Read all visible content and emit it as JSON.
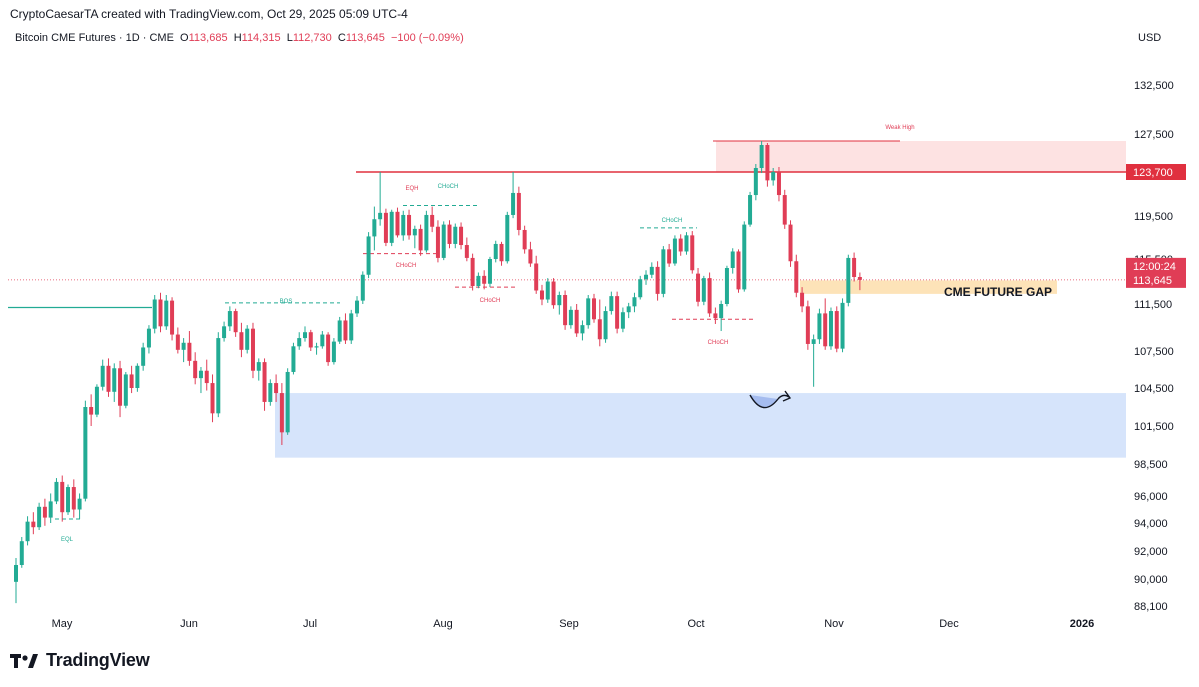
{
  "header": {
    "attribution": "CryptoCaesarTA created with TradingView.com, Oct 29, 2025 05:09 UTC-4"
  },
  "legend": {
    "symbol": "Bitcoin CME Futures · 1D · CME",
    "o_label": "O",
    "o_value": "113,685",
    "h_label": "H",
    "h_value": "114,315",
    "l_label": "L",
    "l_value": "112,730",
    "c_label": "C",
    "c_value": "113,645",
    "change": "−100 (−0.09%)"
  },
  "currency": "USD",
  "brand": {
    "name": "TradingView"
  },
  "colors": {
    "up": "#22ab94",
    "down": "#e03d56",
    "supply_zone": "#fde2e2",
    "demand_zone": "#d6e4fb",
    "gap_zone": "#fde3b8",
    "resistance": "#e0303f"
  },
  "chart_data": {
    "type": "candlestick",
    "y_axis": {
      "ticks": [
        "132,500",
        "127,500",
        "123,700",
        "119,500",
        "115,500",
        "113,645",
        "111,500",
        "107,500",
        "104,500",
        "101,500",
        "98,500",
        "96,000",
        "94,000",
        "92,000",
        "90,000",
        "88,100"
      ],
      "tick_values": [
        132500,
        127500,
        119500,
        115500,
        111500,
        107500,
        104500,
        101500,
        98500,
        96000,
        94000,
        92000,
        90000,
        88100
      ]
    },
    "x_axis": {
      "ticks": [
        "May",
        "Jun",
        "Jul",
        "Aug",
        "Sep",
        "Oct",
        "Nov",
        "Dec",
        "2026"
      ]
    },
    "last_price": {
      "value": 113645,
      "label": "113,645",
      "countdown": "12:00:24"
    },
    "resistance": {
      "value": 123700,
      "label": "123,700"
    },
    "zones": [
      {
        "name": "supply",
        "from": 123700,
        "to": 126800,
        "start": "Oct",
        "label": "Weak High"
      },
      {
        "name": "cme_gap",
        "from": 112400,
        "to": 113600,
        "start": "Oct 24",
        "label": "CME FUTURE GAP"
      },
      {
        "name": "demand",
        "from": 99000,
        "to": 104100,
        "start": "Jun 20"
      }
    ],
    "annotations": [
      "EQL",
      "BOS",
      "EQH",
      "CHoCH",
      "CHoCH",
      "CHoCH",
      "CHoCH",
      "CHoCH"
    ],
    "ohlc_approx": [
      [
        89800,
        91500,
        88300,
        91000
      ],
      [
        91000,
        93000,
        90800,
        92700
      ],
      [
        92700,
        94500,
        92400,
        94100
      ],
      [
        94100,
        94800,
        93200,
        93700
      ],
      [
        93700,
        95500,
        93500,
        95200
      ],
      [
        95200,
        95800,
        93800,
        94400
      ],
      [
        94400,
        96200,
        94000,
        95600
      ],
      [
        95600,
        97400,
        95400,
        97100
      ],
      [
        97100,
        97600,
        94100,
        94800
      ],
      [
        94800,
        96900,
        94600,
        96700
      ],
      [
        96700,
        97300,
        94400,
        95000
      ],
      [
        95000,
        96200,
        94300,
        95800
      ],
      [
        95800,
        103500,
        95600,
        103000
      ],
      [
        103000,
        104000,
        101500,
        102400
      ],
      [
        102400,
        104800,
        102200,
        104600
      ],
      [
        104600,
        106800,
        104300,
        106300
      ],
      [
        106300,
        106900,
        103800,
        104200
      ],
      [
        104200,
        106500,
        103400,
        106100
      ],
      [
        106100,
        106700,
        102200,
        103100
      ],
      [
        103100,
        105800,
        102900,
        105600
      ],
      [
        105600,
        106300,
        104100,
        104500
      ],
      [
        104500,
        106500,
        104200,
        106300
      ],
      [
        106300,
        108200,
        105900,
        107800
      ],
      [
        107800,
        109700,
        107300,
        109400
      ],
      [
        109400,
        112300,
        109000,
        111900
      ],
      [
        111900,
        112500,
        109100,
        109600
      ],
      [
        109600,
        112300,
        109300,
        111800
      ],
      [
        111800,
        112100,
        108400,
        108900
      ],
      [
        108900,
        109500,
        107300,
        107600
      ],
      [
        107600,
        108600,
        106600,
        108200
      ],
      [
        108200,
        109200,
        106300,
        106700
      ],
      [
        106700,
        107400,
        104800,
        105300
      ],
      [
        105300,
        106200,
        104100,
        105900
      ],
      [
        105900,
        106800,
        104300,
        104900
      ],
      [
        104900,
        105600,
        101800,
        102500
      ],
      [
        102500,
        109100,
        102200,
        108600
      ],
      [
        108600,
        110000,
        108300,
        109600
      ],
      [
        109600,
        111300,
        109200,
        110900
      ],
      [
        110900,
        111100,
        108700,
        109100
      ],
      [
        109100,
        109900,
        107000,
        107600
      ],
      [
        107600,
        109700,
        107300,
        109400
      ],
      [
        109400,
        109900,
        105300,
        105900
      ],
      [
        105900,
        106900,
        105100,
        106600
      ],
      [
        106600,
        106900,
        102700,
        103400
      ],
      [
        103400,
        105200,
        103100,
        104900
      ],
      [
        104900,
        105600,
        103400,
        104100
      ],
      [
        104100,
        104900,
        100000,
        101000
      ],
      [
        101000,
        106100,
        100800,
        105800
      ],
      [
        105800,
        108200,
        105600,
        107900
      ],
      [
        107900,
        109100,
        107600,
        108600
      ],
      [
        108600,
        109600,
        108300,
        109100
      ],
      [
        109100,
        109300,
        107500,
        107800
      ],
      [
        107800,
        108200,
        107200,
        107900
      ],
      [
        107900,
        109200,
        107700,
        108900
      ],
      [
        108900,
        109100,
        106300,
        106600
      ],
      [
        106600,
        108600,
        106400,
        108300
      ],
      [
        108300,
        110400,
        108100,
        110100
      ],
      [
        110100,
        110700,
        108100,
        108400
      ],
      [
        108400,
        111000,
        108100,
        110700
      ],
      [
        110700,
        112200,
        110400,
        111800
      ],
      [
        111800,
        114400,
        111500,
        114100
      ],
      [
        114100,
        118000,
        113800,
        117600
      ],
      [
        117600,
        120400,
        116300,
        119200
      ],
      [
        119200,
        123700,
        118600,
        119800
      ],
      [
        119800,
        120200,
        116700,
        117000
      ],
      [
        117000,
        120100,
        116700,
        119900
      ],
      [
        119900,
        120300,
        117500,
        117700
      ],
      [
        117700,
        120000,
        117200,
        119600
      ],
      [
        119600,
        120100,
        117300,
        117700
      ],
      [
        117700,
        118600,
        116500,
        118300
      ],
      [
        118300,
        118700,
        115800,
        116300
      ],
      [
        116300,
        120000,
        116100,
        119600
      ],
      [
        119600,
        120400,
        118000,
        118500
      ],
      [
        118500,
        119100,
        115200,
        115600
      ],
      [
        115600,
        119000,
        115400,
        118700
      ],
      [
        118700,
        119100,
        116500,
        116900
      ],
      [
        116900,
        118800,
        116500,
        118500
      ],
      [
        118500,
        118900,
        116400,
        116800
      ],
      [
        116800,
        117500,
        115300,
        115600
      ],
      [
        115600,
        116000,
        112700,
        113100
      ],
      [
        113100,
        114300,
        112900,
        114000
      ],
      [
        114000,
        114500,
        112800,
        113300
      ],
      [
        113300,
        115700,
        113000,
        115500
      ],
      [
        115500,
        117200,
        115200,
        116900
      ],
      [
        116900,
        117100,
        114900,
        115300
      ],
      [
        115300,
        119900,
        115100,
        119600
      ],
      [
        119600,
        123700,
        119300,
        121700
      ],
      [
        121700,
        122300,
        117700,
        118200
      ],
      [
        118200,
        118600,
        116000,
        116400
      ],
      [
        116400,
        117100,
        114800,
        115100
      ],
      [
        115100,
        115800,
        112400,
        112700
      ],
      [
        112700,
        113200,
        111400,
        111900
      ],
      [
        111900,
        113800,
        111600,
        113500
      ],
      [
        113500,
        113800,
        111100,
        111400
      ],
      [
        111400,
        112600,
        110600,
        112300
      ],
      [
        112300,
        112700,
        109300,
        109700
      ],
      [
        109700,
        111300,
        109400,
        111000
      ],
      [
        111000,
        111500,
        108700,
        109000
      ],
      [
        109000,
        110100,
        108400,
        109700
      ],
      [
        109700,
        112300,
        109400,
        112000
      ],
      [
        112000,
        112400,
        109900,
        110200
      ],
      [
        110200,
        111900,
        107900,
        108500
      ],
      [
        108500,
        111300,
        108200,
        110900
      ],
      [
        110900,
        112600,
        110600,
        112200
      ],
      [
        112200,
        112600,
        109000,
        109400
      ],
      [
        109400,
        111200,
        109100,
        110800
      ],
      [
        110800,
        111600,
        110300,
        111300
      ],
      [
        111300,
        112500,
        110800,
        112100
      ],
      [
        112100,
        114000,
        111900,
        113700
      ],
      [
        113700,
        114500,
        113200,
        114100
      ],
      [
        114100,
        115200,
        113800,
        114800
      ],
      [
        114800,
        115300,
        111800,
        112400
      ],
      [
        112400,
        116700,
        112100,
        116400
      ],
      [
        116400,
        116900,
        114800,
        115100
      ],
      [
        115100,
        117700,
        114900,
        117400
      ],
      [
        117400,
        117800,
        115800,
        116200
      ],
      [
        116200,
        118000,
        115900,
        117700
      ],
      [
        117700,
        118100,
        114200,
        114500
      ],
      [
        114200,
        114700,
        111300,
        111700
      ],
      [
        111700,
        114000,
        111400,
        113800
      ],
      [
        113800,
        114300,
        110400,
        110700
      ],
      [
        110700,
        111200,
        109800,
        110300
      ],
      [
        110300,
        111800,
        109200,
        111500
      ],
      [
        111500,
        114900,
        111300,
        114700
      ],
      [
        114700,
        116500,
        114200,
        116200
      ],
      [
        116200,
        116400,
        112500,
        112800
      ],
      [
        112800,
        119000,
        112600,
        118700
      ],
      [
        118700,
        121800,
        118500,
        121500
      ],
      [
        121500,
        124500,
        121000,
        124100
      ],
      [
        124100,
        126800,
        123600,
        126400
      ],
      [
        126400,
        126600,
        122300,
        122900
      ],
      [
        122900,
        124100,
        122400,
        123700
      ],
      [
        123700,
        124200,
        120900,
        121500
      ],
      [
        121500,
        122000,
        118300,
        118700
      ],
      [
        118700,
        119100,
        114800,
        115300
      ],
      [
        115300,
        115900,
        112100,
        112500
      ],
      [
        112500,
        113000,
        110800,
        111300
      ],
      [
        111300,
        111800,
        107600,
        108100
      ],
      [
        108100,
        108900,
        104600,
        108500
      ],
      [
        108500,
        111100,
        108100,
        110700
      ],
      [
        110700,
        112000,
        107600,
        107900
      ],
      [
        107900,
        111200,
        107600,
        110900
      ],
      [
        110900,
        111300,
        107400,
        107700
      ],
      [
        107700,
        112000,
        107400,
        111600
      ],
      [
        111600,
        115900,
        111300,
        115600
      ],
      [
        115600,
        116100,
        113500,
        113900
      ],
      [
        113900,
        114300,
        112730,
        113645
      ]
    ]
  }
}
